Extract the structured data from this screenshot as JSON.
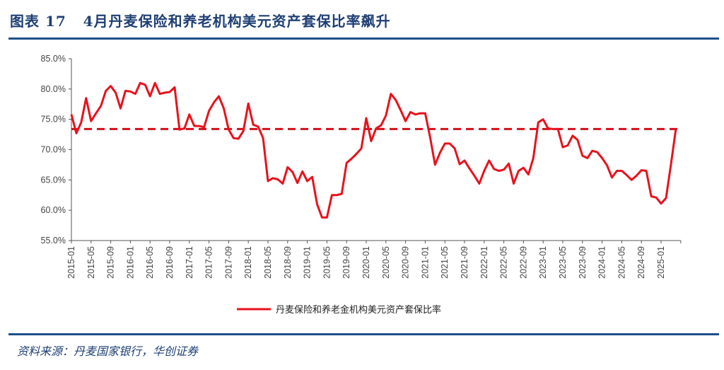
{
  "header": {
    "title": "图表 17   4月丹麦保险和养老机构美元资产套保比率飙升"
  },
  "footer": {
    "source": "资料来源：丹麦国家银行，华创证券"
  },
  "colors": {
    "line": "#e8121c",
    "reference": "#d40f1a",
    "accent": "#1f4e8a"
  },
  "chart_data": {
    "type": "line",
    "title": "4月丹麦保险和养老机构美元资产套保比率飙升",
    "xlabel": "",
    "ylabel": "",
    "ylim": [
      55,
      85
    ],
    "yticks": [
      "55.0%",
      "60.0%",
      "65.0%",
      "70.0%",
      "75.0%",
      "80.0%",
      "85.0%"
    ],
    "ytick_values": [
      55,
      60,
      65,
      70,
      75,
      80,
      85
    ],
    "x_start": "2015-01",
    "x_end": "2025-04",
    "xticks": [
      "2015-01",
      "2015-05",
      "2015-09",
      "2016-01",
      "2016-05",
      "2016-09",
      "2017-01",
      "2017-05",
      "2017-09",
      "2018-01",
      "2018-05",
      "2018-09",
      "2019-01",
      "2019-05",
      "2019-09",
      "2020-01",
      "2020-05",
      "2020-09",
      "2021-01",
      "2021-05",
      "2021-09",
      "2022-01",
      "2022-05",
      "2022-09",
      "2023-01",
      "2023-05",
      "2023-09",
      "2024-01",
      "2024-05",
      "2024-09",
      "2025-01"
    ],
    "legend": "丹麦保险和养老金机构美元资产套保比率",
    "legend_position": "bottom",
    "reference_line": 73.4,
    "series": [
      {
        "name": "丹麦保险和养老金机构美元资产套保比率",
        "values": [
          75.8,
          72.7,
          74.5,
          78.5,
          74.7,
          76.0,
          77.2,
          79.7,
          80.5,
          79.4,
          76.8,
          79.7,
          79.6,
          79.2,
          81.0,
          80.7,
          78.8,
          81.0,
          79.2,
          79.4,
          79.5,
          80.3,
          73.3,
          73.5,
          75.8,
          73.9,
          73.9,
          73.7,
          76.4,
          77.8,
          78.8,
          76.8,
          73.3,
          71.9,
          71.8,
          73.1,
          77.6,
          74.1,
          73.8,
          71.9,
          64.8,
          65.3,
          65.1,
          64.4,
          67.1,
          66.3,
          64.5,
          66.4,
          64.8,
          65.5,
          61.0,
          58.8,
          58.8,
          62.5,
          62.5,
          62.7,
          67.8,
          68.5,
          69.3,
          70.2,
          75.2,
          71.4,
          73.5,
          74.0,
          75.6,
          79.2,
          78.2,
          76.5,
          74.7,
          76.2,
          75.8,
          76.0,
          76.0,
          72.0,
          67.5,
          69.5,
          71.0,
          71.0,
          70.2,
          67.6,
          68.2,
          66.9,
          65.7,
          64.4,
          66.5,
          68.2,
          66.8,
          66.5,
          66.7,
          67.7,
          64.4,
          66.5,
          67.0,
          65.9,
          68.6,
          74.5,
          75.0,
          73.5,
          73.4,
          73.4,
          70.4,
          70.7,
          72.3,
          71.6,
          69.0,
          68.6,
          69.8,
          69.6,
          68.6,
          67.4,
          65.4,
          66.5,
          66.5,
          65.8,
          65.0,
          65.7,
          66.6,
          66.5,
          62.3,
          62.1,
          61.1,
          62.0,
          67.5,
          73.4
        ]
      }
    ]
  }
}
